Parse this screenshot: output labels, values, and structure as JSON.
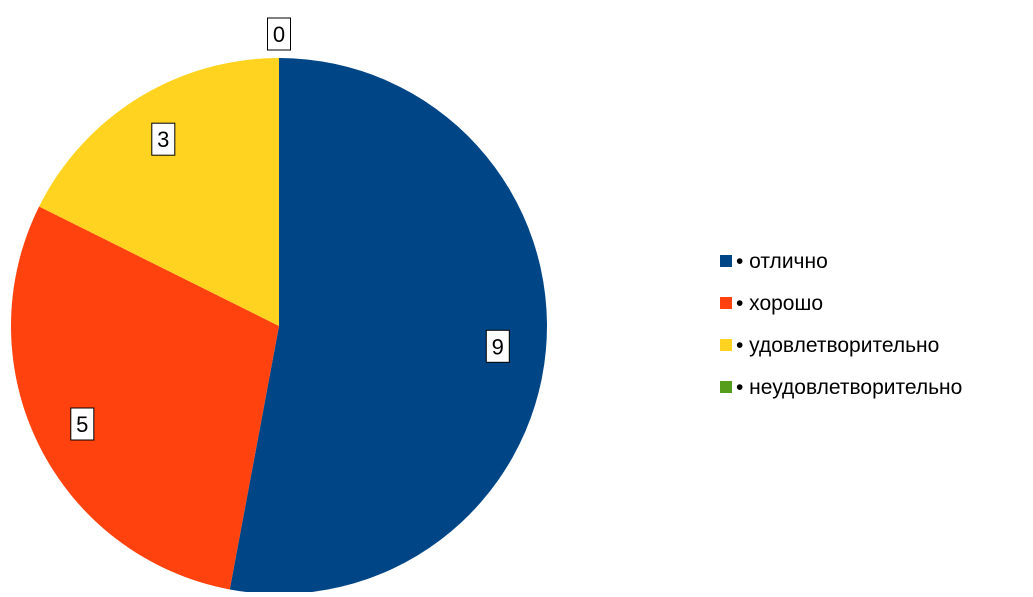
{
  "chart_data": {
    "type": "pie",
    "title": "",
    "legend_position": "right",
    "slices": [
      {
        "label": "• отлично",
        "value": 9,
        "color": "#004586"
      },
      {
        "label": "• хорошо",
        "value": 5,
        "color": "#ff420e"
      },
      {
        "label": "• удовлетворительно",
        "value": 3,
        "color": "#ffd320"
      },
      {
        "label": "• неудовлетворительно",
        "value": 0,
        "color": "#579d1c"
      }
    ]
  }
}
